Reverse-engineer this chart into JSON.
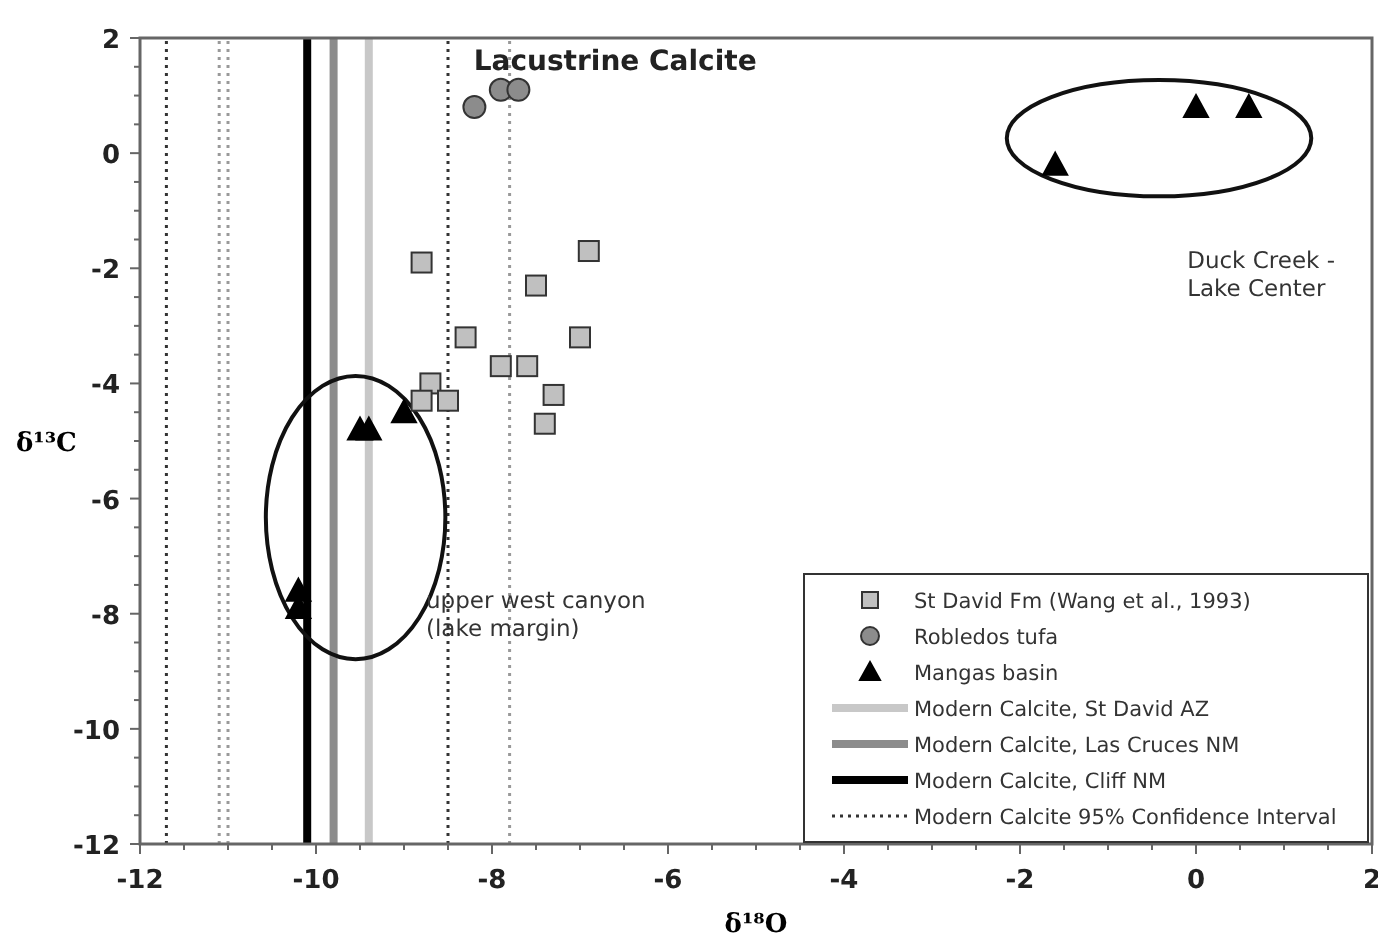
{
  "chart_data": {
    "type": "scatter",
    "title": "Lacustrine Calcite",
    "xlabel": "δ¹⁸O",
    "ylabel": "δ¹³C",
    "xlim": [
      -12,
      2
    ],
    "ylim": [
      -12,
      2
    ],
    "xticks": [
      -12,
      {
        "value": -11.5,
        "label": null
      },
      {
        "value": -11,
        "label": null
      },
      {
        "value": -10.5,
        "label": null
      },
      -10,
      {
        "value": -9.5,
        "label": null
      },
      {
        "value": -9,
        "label": null
      },
      {
        "value": -8.5,
        "label": null
      },
      -8,
      {
        "value": -7.5,
        "label": null
      },
      {
        "value": -7,
        "label": null
      },
      {
        "value": -6.5,
        "label": null
      },
      -6,
      {
        "value": -5.5,
        "label": null
      },
      {
        "value": -5,
        "label": null
      },
      {
        "value": -4.5,
        "label": null
      },
      -4,
      {
        "value": -3.5,
        "label": null
      },
      {
        "value": -3,
        "label": null
      },
      {
        "value": -2.5,
        "label": null
      },
      -2,
      {
        "value": -1.5,
        "label": null
      },
      {
        "value": -1,
        "label": null
      },
      {
        "value": -0.5,
        "label": null
      },
      0,
      {
        "value": 0.5,
        "label": null
      },
      {
        "value": 1,
        "label": null
      },
      {
        "value": 1.5,
        "label": null
      },
      2
    ],
    "yticks": [
      -12,
      {
        "value": -11.5,
        "label": null
      },
      {
        "value": -11,
        "label": null
      },
      {
        "value": -10.5,
        "label": null
      },
      -10,
      {
        "value": -9.5,
        "label": null
      },
      {
        "value": -9,
        "label": null
      },
      {
        "value": -8.5,
        "label": null
      },
      -8,
      {
        "value": -7.5,
        "label": null
      },
      {
        "value": -7,
        "label": null
      },
      {
        "value": -6.5,
        "label": null
      },
      -6,
      {
        "value": -5.5,
        "label": null
      },
      {
        "value": -5,
        "label": null
      },
      {
        "value": -4.5,
        "label": null
      },
      -4,
      {
        "value": -3.5,
        "label": null
      },
      {
        "value": -3,
        "label": null
      },
      {
        "value": -2.5,
        "label": null
      },
      -2,
      {
        "value": -1.5,
        "label": null
      },
      {
        "value": -1,
        "label": null
      },
      {
        "value": -0.5,
        "label": null
      },
      0,
      {
        "value": 0.5,
        "label": null
      },
      {
        "value": 1,
        "label": null
      },
      {
        "value": 1.5,
        "label": null
      },
      2
    ],
    "grid": false,
    "legend": "bottom right",
    "series": [
      {
        "name": "St David Fm (Wang et al., 1993)",
        "color": "#c0c0c0",
        "marker": "square",
        "x": [
          -8.8,
          -6.9,
          -7.5,
          -8.3,
          -7.0,
          -7.9,
          -7.6,
          -8.7,
          -8.8,
          -8.5,
          -7.3,
          -7.4
        ],
        "values": [
          -1.9,
          -1.7,
          -2.3,
          -3.2,
          -3.2,
          -3.7,
          -3.7,
          -4.0,
          -4.3,
          -4.3,
          -4.2,
          -4.7
        ]
      },
      {
        "name": "Robledos tufa",
        "color": "#8c8c8c",
        "marker": "circle",
        "x": [
          -8.2,
          -7.9,
          -7.7
        ],
        "values": [
          0.8,
          1.1,
          1.1
        ]
      },
      {
        "name": "Mangas basin",
        "color": "#000000",
        "marker": "triangle",
        "x": [
          -9.5,
          -9.4,
          -9.0,
          -10.2,
          -10.2,
          0.0,
          0.6,
          -1.6
        ],
        "values": [
          -4.8,
          -4.8,
          -4.5,
          -7.6,
          -7.9,
          0.8,
          0.8,
          -0.2
        ]
      },
      {
        "type": "line",
        "name": "Modern Calcite, St David AZ",
        "color": "#c8c8c8",
        "line_style": "solid",
        "x": [
          -9.4,
          -9.4
        ],
        "values": [
          -12,
          2
        ]
      },
      {
        "type": "line",
        "name": "Modern Calcite, Las Cruces NM",
        "color": "#8c8c8c",
        "line_style": "solid",
        "x": [
          -9.8,
          -9.8
        ],
        "values": [
          -12,
          2
        ]
      },
      {
        "type": "line",
        "name": "Modern Calcite, Cliff NM",
        "color": "#000000",
        "line_style": "solid",
        "x": [
          -10.1,
          -10.1
        ],
        "values": [
          -12,
          2
        ]
      },
      {
        "type": "line",
        "name": "Modern Calcite 95% Confidence Interval",
        "color": "#333333",
        "line_style": "dotted",
        "x": [
          -11.7,
          -11.7
        ],
        "values": [
          -12,
          2
        ]
      },
      {
        "type": "line",
        "color": "#333333",
        "line_style": "dotted",
        "x": [
          -8.5,
          -8.5
        ],
        "values": [
          -12,
          2
        ]
      },
      {
        "type": "line",
        "color": "#999999",
        "line_style": "dotted",
        "x": [
          -11.1,
          -11.1
        ],
        "values": [
          -12,
          2
        ]
      },
      {
        "type": "line",
        "color": "#999999",
        "line_style": "dotted",
        "x": [
          -11.0,
          -11.0
        ],
        "values": [
          -12,
          2
        ]
      },
      {
        "type": "line",
        "color": "#999999",
        "line_style": "dotted",
        "x": [
          -7.8,
          -7.8
        ],
        "values": [
          -12,
          2
        ]
      }
    ],
    "annotations": [
      "Duck Creek -\nLake Center",
      "upper west canyon\n(lake margin)"
    ]
  }
}
